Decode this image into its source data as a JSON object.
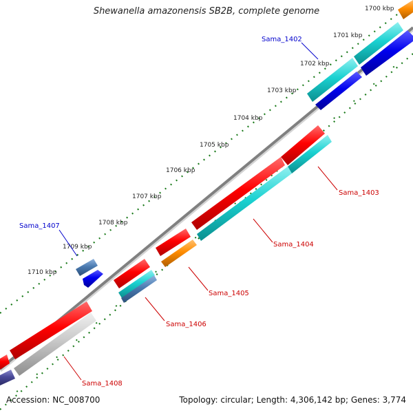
{
  "title": "Shewanella amazonensis SB2B, complete genome",
  "footer": {
    "accession": "Accession: NC_008700",
    "summary": "Topology: circular; Length: 4,306,142 bp; Genes: 3,774"
  },
  "ticks": [
    "1700 kbp",
    "1701 kbp",
    "1702 kbp",
    "1703 kbp",
    "1704 kbp",
    "1705 kbp",
    "1706 kbp",
    "1707 kbp",
    "1708 kbp",
    "1709 kbp",
    "1710 kbp"
  ],
  "labels": {
    "sama_1402": "Sama_1402",
    "sama_1403": "Sama_1403",
    "sama_1404": "Sama_1404",
    "sama_1405": "Sama_1405",
    "sama_1406": "Sama_1406",
    "sama_1407": "Sama_1407",
    "sama_1408": "Sama_1408"
  },
  "colors": {
    "backbone": "#8a8a8a",
    "cds_forward": "#ff0000",
    "cds_reverse": "#1ad1d1",
    "orange": "#ff8c00",
    "blue": "#0000ee",
    "steel": "#4a7ab0",
    "grey": "#c8c8c8",
    "tick_green": "#1a7a1a",
    "label_blue": "#0000cc",
    "label_red": "#cc0000"
  }
}
